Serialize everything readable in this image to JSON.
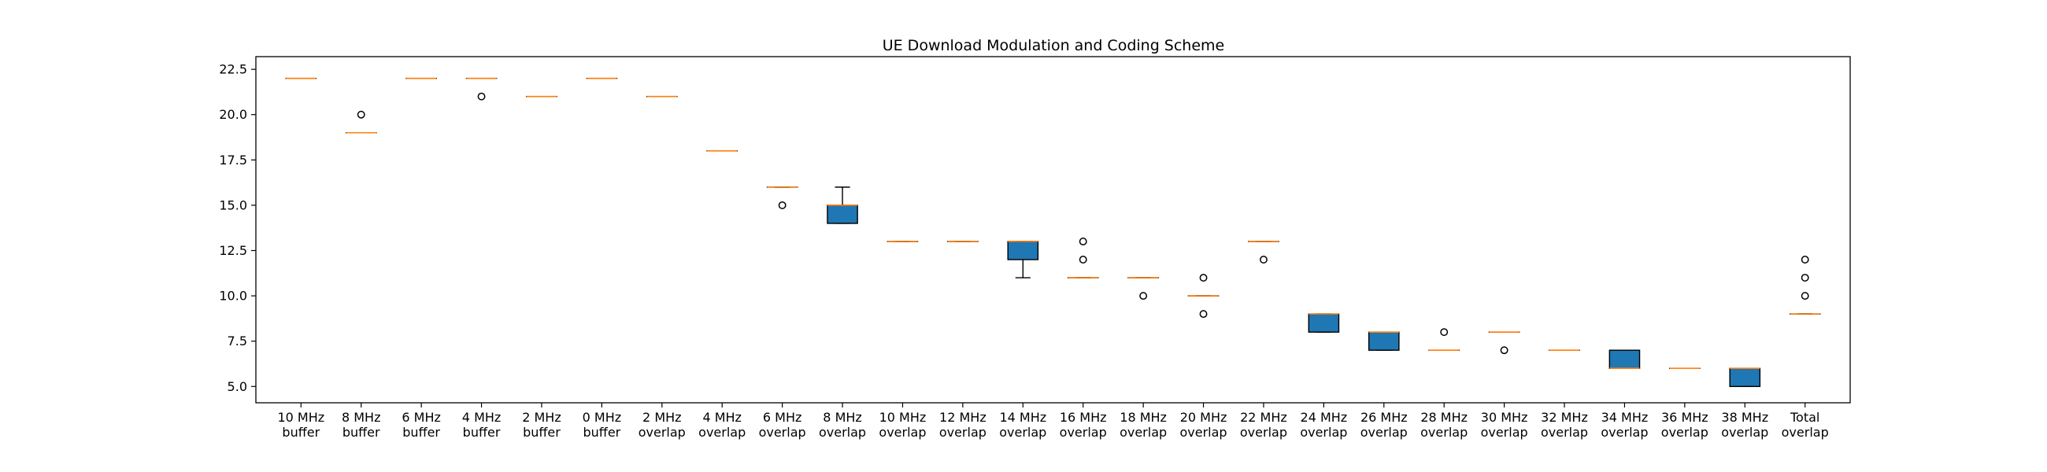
{
  "chart_data": {
    "type": "box",
    "title": "UE Download Modulation and Coding Scheme",
    "xlabel": "",
    "ylabel": "",
    "ylim": [
      4.1,
      23.2
    ],
    "yticks": [
      "5.0",
      "7.5",
      "10.0",
      "12.5",
      "15.0",
      "17.5",
      "20.0",
      "22.5"
    ],
    "grid": false,
    "colors": {
      "box": "#1f77b4",
      "median": "#ff7f0e",
      "edge": "#000000"
    },
    "boxes": [
      {
        "label": [
          "10 MHz",
          "buffer"
        ],
        "q1": 22,
        "median": 22,
        "q3": 22,
        "whislo": 22,
        "whishi": 22,
        "fliers": []
      },
      {
        "label": [
          "8 MHz",
          "buffer"
        ],
        "q1": 19,
        "median": 19,
        "q3": 19,
        "whislo": 19,
        "whishi": 19,
        "fliers": [
          20
        ]
      },
      {
        "label": [
          "6 MHz",
          "buffer"
        ],
        "q1": 22,
        "median": 22,
        "q3": 22,
        "whislo": 22,
        "whishi": 22,
        "fliers": []
      },
      {
        "label": [
          "4 MHz",
          "buffer"
        ],
        "q1": 22,
        "median": 22,
        "q3": 22,
        "whislo": 22,
        "whishi": 22,
        "fliers": [
          21
        ]
      },
      {
        "label": [
          "2 MHz",
          "buffer"
        ],
        "q1": 21,
        "median": 21,
        "q3": 21,
        "whislo": 21,
        "whishi": 21,
        "fliers": []
      },
      {
        "label": [
          "0 MHz",
          "buffer"
        ],
        "q1": 22,
        "median": 22,
        "q3": 22,
        "whislo": 22,
        "whishi": 22,
        "fliers": []
      },
      {
        "label": [
          "2 MHz",
          "overlap"
        ],
        "q1": 21,
        "median": 21,
        "q3": 21,
        "whislo": 21,
        "whishi": 21,
        "fliers": []
      },
      {
        "label": [
          "4 MHz",
          "overlap"
        ],
        "q1": 18,
        "median": 18,
        "q3": 18,
        "whislo": 18,
        "whishi": 18,
        "fliers": []
      },
      {
        "label": [
          "6 MHz",
          "overlap"
        ],
        "q1": 16,
        "median": 16,
        "q3": 16,
        "whislo": 16,
        "whishi": 16,
        "fliers": [
          15
        ]
      },
      {
        "label": [
          "8 MHz",
          "overlap"
        ],
        "q1": 14,
        "median": 15,
        "q3": 15,
        "whislo": 14,
        "whishi": 16,
        "fliers": []
      },
      {
        "label": [
          "10 MHz",
          "overlap"
        ],
        "q1": 13,
        "median": 13,
        "q3": 13,
        "whislo": 13,
        "whishi": 13,
        "fliers": []
      },
      {
        "label": [
          "12 MHz",
          "overlap"
        ],
        "q1": 13,
        "median": 13,
        "q3": 13,
        "whislo": 13,
        "whishi": 13,
        "fliers": []
      },
      {
        "label": [
          "14 MHz",
          "overlap"
        ],
        "q1": 12,
        "median": 13,
        "q3": 13,
        "whislo": 11,
        "whishi": 13,
        "fliers": []
      },
      {
        "label": [
          "16 MHz",
          "overlap"
        ],
        "q1": 11,
        "median": 11,
        "q3": 11,
        "whislo": 11,
        "whishi": 11,
        "fliers": [
          12,
          13
        ]
      },
      {
        "label": [
          "18 MHz",
          "overlap"
        ],
        "q1": 11,
        "median": 11,
        "q3": 11,
        "whislo": 11,
        "whishi": 11,
        "fliers": [
          10
        ]
      },
      {
        "label": [
          "20 MHz",
          "overlap"
        ],
        "q1": 10,
        "median": 10,
        "q3": 10,
        "whislo": 10,
        "whishi": 10,
        "fliers": [
          9,
          11
        ]
      },
      {
        "label": [
          "22 MHz",
          "overlap"
        ],
        "q1": 13,
        "median": 13,
        "q3": 13,
        "whislo": 13,
        "whishi": 13,
        "fliers": [
          12
        ]
      },
      {
        "label": [
          "24 MHz",
          "overlap"
        ],
        "q1": 8,
        "median": 9,
        "q3": 9,
        "whislo": 8,
        "whishi": 9,
        "fliers": []
      },
      {
        "label": [
          "26 MHz",
          "overlap"
        ],
        "q1": 7,
        "median": 8,
        "q3": 8,
        "whislo": 7,
        "whishi": 8,
        "fliers": []
      },
      {
        "label": [
          "28 MHz",
          "overlap"
        ],
        "q1": 7,
        "median": 7,
        "q3": 7,
        "whislo": 7,
        "whishi": 7,
        "fliers": [
          8
        ]
      },
      {
        "label": [
          "30 MHz",
          "overlap"
        ],
        "q1": 8,
        "median": 8,
        "q3": 8,
        "whislo": 8,
        "whishi": 8,
        "fliers": [
          7
        ]
      },
      {
        "label": [
          "32 MHz",
          "overlap"
        ],
        "q1": 7,
        "median": 7,
        "q3": 7,
        "whislo": 7,
        "whishi": 7,
        "fliers": []
      },
      {
        "label": [
          "34 MHz",
          "overlap"
        ],
        "q1": 6,
        "median": 6,
        "q3": 7,
        "whislo": 6,
        "whishi": 7,
        "fliers": []
      },
      {
        "label": [
          "36 MHz",
          "overlap"
        ],
        "q1": 6,
        "median": 6,
        "q3": 6,
        "whislo": 6,
        "whishi": 6,
        "fliers": []
      },
      {
        "label": [
          "38 MHz",
          "overlap"
        ],
        "q1": 5,
        "median": 6,
        "q3": 6,
        "whislo": 5,
        "whishi": 6,
        "fliers": []
      },
      {
        "label": [
          "Total",
          "overlap"
        ],
        "q1": 9,
        "median": 9,
        "q3": 9,
        "whislo": 9,
        "whishi": 9,
        "fliers": [
          10,
          11,
          12
        ]
      }
    ]
  }
}
